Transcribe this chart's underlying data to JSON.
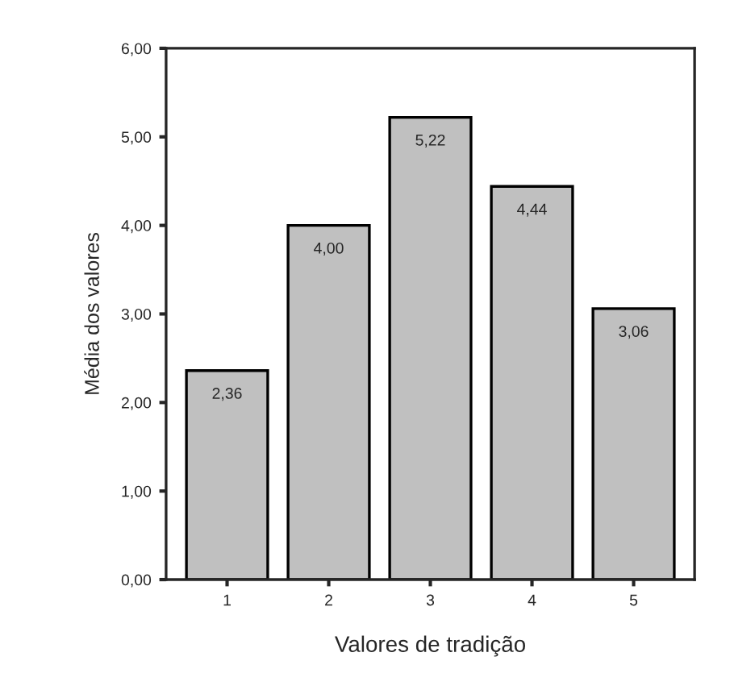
{
  "chart_data": {
    "type": "bar",
    "xlabel": "Valores de tradição",
    "ylabel": "Média dos valores",
    "categories": [
      "1",
      "2",
      "3",
      "4",
      "5"
    ],
    "values": [
      2.36,
      4.0,
      5.22,
      4.44,
      3.06
    ],
    "value_labels": [
      "2,36",
      "4,00",
      "5,22",
      "4,44",
      "3,06"
    ],
    "color": "#c0c0c0",
    "ylim": [
      0,
      6
    ],
    "yticks": [
      {
        "value": 0,
        "label": "0,00"
      },
      {
        "value": 1,
        "label": "1,00"
      },
      {
        "value": 2,
        "label": "2,00"
      },
      {
        "value": 3,
        "label": "3,00"
      },
      {
        "value": 4,
        "label": "4,00"
      },
      {
        "value": 5,
        "label": "5,00"
      },
      {
        "value": 6,
        "label": "6,00"
      }
    ],
    "grid": false,
    "legend": false
  }
}
